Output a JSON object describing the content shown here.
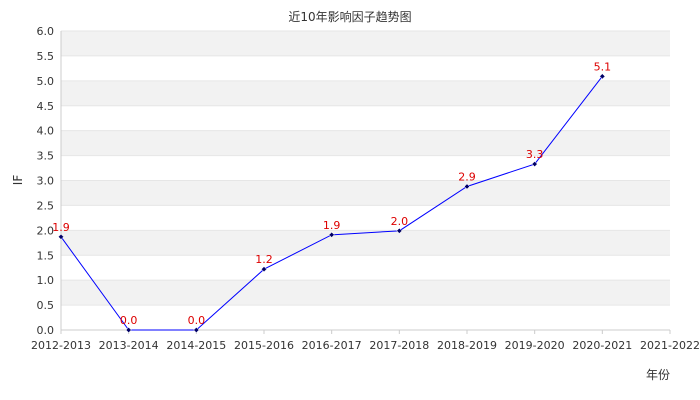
{
  "chart_data": {
    "type": "line",
    "title": "近10年影响因子趋势图",
    "xlabel": "年份",
    "ylabel": "IF",
    "categories": [
      "2012-2013",
      "2013-2014",
      "2014-2015",
      "2015-2016",
      "2016-2017",
      "2017-2018",
      "2018-2019",
      "2019-2020",
      "2020-2021",
      "2021-2022"
    ],
    "values": [
      1.87,
      0.0,
      0.0,
      1.22,
      1.91,
      1.99,
      2.88,
      3.33,
      5.09,
      null
    ],
    "data_labels": [
      "1.9",
      "0.0",
      "0.0",
      "1.2",
      "1.9",
      "2.0",
      "2.9",
      "3.3",
      "5.1",
      ""
    ],
    "ylim": [
      0,
      6
    ],
    "yticks": [
      "0.0",
      "0.5",
      "1.0",
      "1.5",
      "2.0",
      "2.5",
      "3.0",
      "3.5",
      "4.0",
      "4.5",
      "5.0",
      "5.5",
      "6.0"
    ],
    "colors": {
      "line": "#0000ff",
      "marker": "#000066",
      "label": "#dd0000",
      "band": "#f2f2f2",
      "grid": "#e6e6e6"
    },
    "grid": true,
    "legend": "none"
  }
}
